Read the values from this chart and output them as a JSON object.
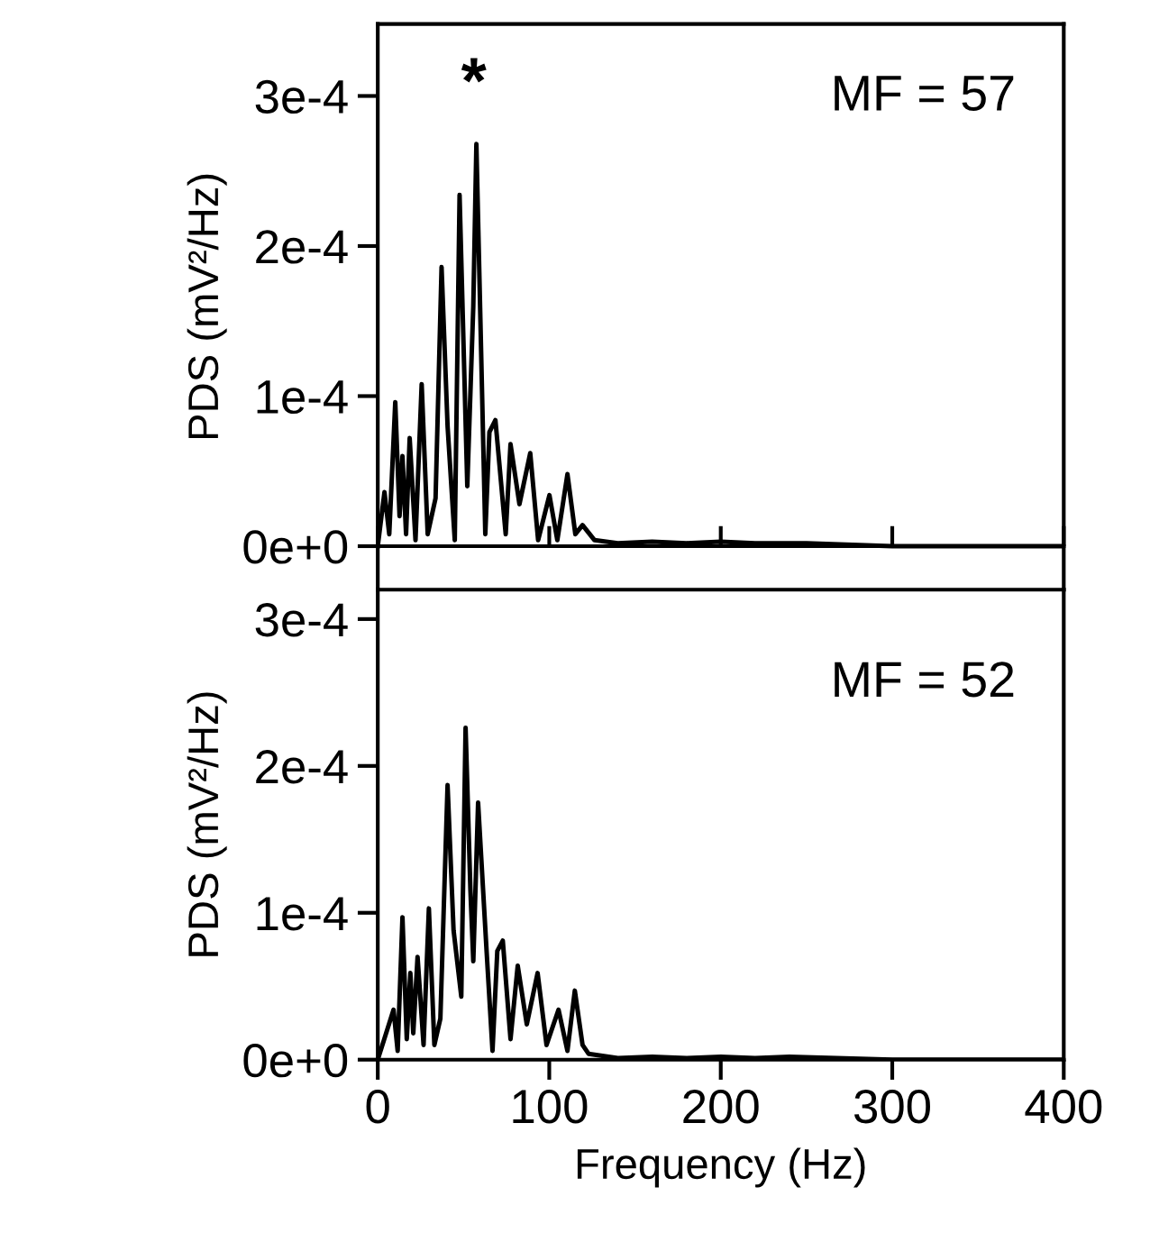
{
  "chart_data": [
    {
      "type": "line",
      "ylabel": "PDS (mV²/Hz)",
      "annotations": [
        "MF = 57",
        "*"
      ],
      "xlim": [
        0,
        400
      ],
      "xticks": [
        {
          "value": 0,
          "label": null
        },
        {
          "value": 100,
          "label": null
        },
        {
          "value": 200,
          "label": null
        },
        {
          "value": 300,
          "label": null
        },
        {
          "value": 400,
          "label": null
        }
      ],
      "ylim": [
        -2.9e-05,
        0.000348
      ],
      "yticks": [
        {
          "value": 0,
          "label": "0e+0"
        },
        {
          "value": 0.0001,
          "label": "1e-4"
        },
        {
          "value": 0.0002,
          "label": "2e-4"
        },
        {
          "value": 0.0003,
          "label": "3e-4"
        }
      ],
      "tick_labels": "y",
      "series": [
        {
          "color": "#000000",
          "x": [
            0,
            3.9,
            6.7,
            10.2,
            12.7,
            14.4,
            16.5,
            18.6,
            22,
            25.6,
            29.1,
            33.7,
            37.2,
            40.7,
            44.9,
            47.7,
            52.2,
            55.7,
            57.5,
            62.7,
            65.1,
            68.6,
            74.6,
            77.4,
            82.6,
            88.9,
            93.5,
            100.1,
            104.7,
            110.6,
            115.2,
            119.4,
            126.4,
            140,
            160,
            180,
            200,
            220,
            250,
            300,
            400
          ],
          "values": [
            0,
            3.6e-05,
            8e-06,
            9.6e-05,
            2e-05,
            6e-05,
            8e-06,
            7.2e-05,
            4e-06,
            0.000108,
            8e-06,
            3.2e-05,
            0.000186,
            8e-05,
            4e-06,
            0.000234,
            4e-05,
            0.00016,
            0.000268,
            8e-06,
            7.6e-05,
            8.4e-05,
            8e-06,
            6.8e-05,
            2.8e-05,
            6.2e-05,
            4e-06,
            3.4e-05,
            4e-06,
            4.8e-05,
            8e-06,
            1.4e-05,
            4e-06,
            2e-06,
            3e-06,
            2e-06,
            3e-06,
            2e-06,
            2e-06,
            0,
            0
          ]
        }
      ]
    },
    {
      "type": "line",
      "ylabel": "PDS (mV²/Hz)",
      "xlabel": "Frequency (Hz)",
      "annotations": [
        "MF = 52"
      ],
      "xlim": [
        0,
        400
      ],
      "xticks": [
        0,
        100,
        200,
        300,
        400
      ],
      "ylim": [
        0,
        0.00032
      ],
      "yticks": [
        {
          "value": 0,
          "label": "0e+0"
        },
        {
          "value": 0.0001,
          "label": "1e-4"
        },
        {
          "value": 0.0002,
          "label": "2e-4"
        },
        {
          "value": 0.0003,
          "label": "3e-4"
        }
      ],
      "series": [
        {
          "color": "#000000",
          "x": [
            0,
            9.2,
            11.6,
            14.4,
            16.9,
            19,
            20.7,
            23.2,
            26.7,
            29.8,
            33,
            36.5,
            40.7,
            44.2,
            48.7,
            51.2,
            54,
            55.7,
            58.5,
            63.4,
            66.9,
            69.7,
            72.9,
            77.4,
            81.6,
            86.9,
            93.2,
            98.4,
            105.4,
            110.6,
            114.9,
            119.4,
            122.9,
            140,
            160,
            180,
            200,
            220,
            240,
            300,
            400
          ],
          "values": [
            0,
            3.4e-05,
            6e-06,
            9.7e-05,
            1.4e-05,
            5.9e-05,
            1.8e-05,
            7e-05,
            1e-05,
            0.000103,
            1e-05,
            2.8e-05,
            0.000187,
            8.8e-05,
            4.3e-05,
            0.000226,
            0.000116,
            6.7e-05,
            0.000175,
            7.5e-05,
            6e-06,
            7.4e-05,
            8.1e-05,
            1.4e-05,
            6.4e-05,
            2.4e-05,
            5.9e-05,
            1e-05,
            3.4e-05,
            6e-06,
            4.7e-05,
            1e-05,
            4e-06,
            1e-06,
            2e-06,
            1e-06,
            2e-06,
            1e-06,
            2e-06,
            0,
            0
          ]
        }
      ]
    }
  ]
}
